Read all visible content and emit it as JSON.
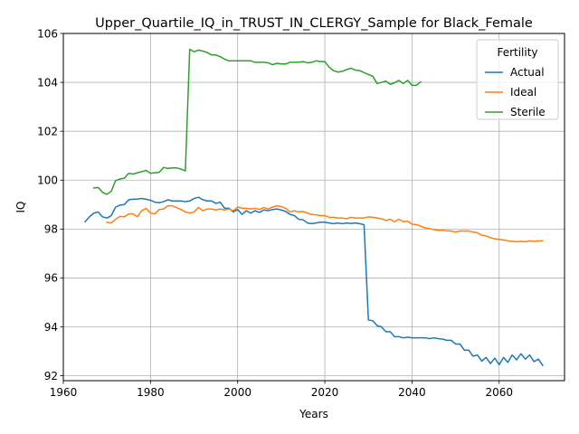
{
  "chart_data": {
    "type": "line",
    "title": "Upper_Quartile_IQ_in_TRUST_IN_CLERGY_Sample for Black_Female",
    "xlabel": "Years",
    "ylabel": "IQ",
    "xlim": [
      1960,
      2075
    ],
    "ylim": [
      91.8,
      106
    ],
    "xticks": [
      1960,
      1980,
      2000,
      2020,
      2040,
      2060
    ],
    "yticks": [
      92,
      94,
      96,
      98,
      100,
      102,
      104,
      106
    ],
    "grid": true,
    "legend": {
      "title": "Fertility",
      "placement": "top-right"
    },
    "series": [
      {
        "name": "Actual",
        "color": "#1f77b4",
        "x": [
          1965,
          1966,
          1967,
          1968,
          1969,
          1970,
          1971,
          1972,
          1973,
          1974,
          1975,
          1976,
          1977,
          1978,
          1979,
          1980,
          1981,
          1982,
          1983,
          1984,
          1985,
          1986,
          1987,
          1988,
          1989,
          1990,
          1991,
          1992,
          1993,
          1994,
          1995,
          1996,
          1997,
          1998,
          1999,
          2000,
          2001,
          2002,
          2003,
          2004,
          2005,
          2006,
          2007,
          2008,
          2009,
          2010,
          2011,
          2012,
          2013,
          2014,
          2015,
          2016,
          2017,
          2018,
          2019,
          2020,
          2021,
          2022,
          2023,
          2024,
          2025,
          2026,
          2027,
          2028,
          2029,
          2030,
          2031,
          2032,
          2033,
          2034,
          2035,
          2036,
          2037,
          2038,
          2039,
          2040,
          2041,
          2042,
          2043,
          2044,
          2045,
          2046,
          2047,
          2048,
          2049,
          2050,
          2051,
          2052,
          2053,
          2054,
          2055,
          2056,
          2057,
          2058,
          2059,
          2060,
          2061,
          2062,
          2063,
          2064,
          2065,
          2066,
          2067,
          2068,
          2069,
          2070
        ],
        "y": [
          98.3,
          98.5,
          98.65,
          98.7,
          98.5,
          98.45,
          98.55,
          98.9,
          98.98,
          99.0,
          99.2,
          99.22,
          99.23,
          99.25,
          99.22,
          99.18,
          99.1,
          99.08,
          99.12,
          99.2,
          99.15,
          99.15,
          99.15,
          99.12,
          99.15,
          99.25,
          99.3,
          99.2,
          99.15,
          99.15,
          99.05,
          99.1,
          98.85,
          98.85,
          98.7,
          98.8,
          98.6,
          98.75,
          98.65,
          98.75,
          98.68,
          98.78,
          98.75,
          98.8,
          98.82,
          98.78,
          98.72,
          98.6,
          98.55,
          98.4,
          98.38,
          98.25,
          98.22,
          98.25,
          98.28,
          98.28,
          98.25,
          98.22,
          98.25,
          98.22,
          98.25,
          98.23,
          98.25,
          98.22,
          98.18,
          94.28,
          94.25,
          94.05,
          94.0,
          93.8,
          93.8,
          93.6,
          93.6,
          93.55,
          93.58,
          93.55,
          93.55,
          93.55,
          93.55,
          93.52,
          93.55,
          93.52,
          93.5,
          93.45,
          93.45,
          93.3,
          93.3,
          93.05,
          93.05,
          92.8,
          92.85,
          92.6,
          92.75,
          92.5,
          92.72,
          92.45,
          92.75,
          92.55,
          92.85,
          92.65,
          92.9,
          92.68,
          92.85,
          92.58,
          92.68,
          92.42
        ]
      },
      {
        "name": "Ideal",
        "color": "#ff7f0e",
        "x": [
          1970,
          1971,
          1972,
          1973,
          1974,
          1975,
          1976,
          1977,
          1978,
          1979,
          1980,
          1981,
          1982,
          1983,
          1984,
          1985,
          1986,
          1987,
          1988,
          1989,
          1990,
          1991,
          1992,
          1993,
          1994,
          1995,
          1996,
          1997,
          1998,
          1999,
          2000,
          2001,
          2002,
          2003,
          2004,
          2005,
          2006,
          2007,
          2008,
          2009,
          2010,
          2011,
          2012,
          2013,
          2014,
          2015,
          2016,
          2017,
          2018,
          2019,
          2020,
          2021,
          2022,
          2023,
          2024,
          2025,
          2026,
          2027,
          2028,
          2029,
          2030,
          2031,
          2032,
          2033,
          2034,
          2035,
          2036,
          2037,
          2038,
          2039,
          2040,
          2041,
          2042,
          2043,
          2044,
          2045,
          2046,
          2047,
          2048,
          2049,
          2050,
          2051,
          2052,
          2053,
          2054,
          2055,
          2056,
          2057,
          2058,
          2059,
          2060,
          2061,
          2062,
          2063,
          2064,
          2065,
          2066,
          2067,
          2068,
          2069,
          2070
        ],
        "y": [
          98.28,
          98.25,
          98.4,
          98.52,
          98.5,
          98.62,
          98.62,
          98.5,
          98.75,
          98.85,
          98.65,
          98.62,
          98.8,
          98.82,
          98.95,
          98.95,
          98.88,
          98.8,
          98.7,
          98.65,
          98.7,
          98.88,
          98.75,
          98.82,
          98.82,
          98.78,
          98.82,
          98.78,
          98.82,
          98.75,
          98.9,
          98.85,
          98.85,
          98.82,
          98.85,
          98.8,
          98.88,
          98.82,
          98.9,
          98.95,
          98.92,
          98.85,
          98.7,
          98.75,
          98.7,
          98.72,
          98.65,
          98.6,
          98.58,
          98.55,
          98.55,
          98.48,
          98.48,
          98.45,
          98.45,
          98.42,
          98.48,
          98.45,
          98.45,
          98.45,
          98.5,
          98.48,
          98.45,
          98.42,
          98.35,
          98.4,
          98.3,
          98.4,
          98.3,
          98.32,
          98.2,
          98.18,
          98.12,
          98.05,
          98.02,
          97.98,
          97.95,
          97.95,
          97.93,
          97.92,
          97.88,
          97.92,
          97.92,
          97.92,
          97.88,
          97.85,
          97.75,
          97.72,
          97.65,
          97.6,
          97.58,
          97.55,
          97.52,
          97.5,
          97.48,
          97.5,
          97.48,
          97.52,
          97.5,
          97.52,
          97.52
        ]
      },
      {
        "name": "Sterile",
        "color": "#2ca02c",
        "x": [
          1967,
          1968,
          1969,
          1970,
          1971,
          1972,
          1973,
          1974,
          1975,
          1976,
          1977,
          1978,
          1979,
          1980,
          1981,
          1982,
          1983,
          1984,
          1985,
          1986,
          1987,
          1988,
          1989,
          1990,
          1991,
          1992,
          1993,
          1994,
          1995,
          1996,
          1997,
          1998,
          1999,
          2000,
          2001,
          2002,
          2003,
          2004,
          2005,
          2006,
          2007,
          2008,
          2009,
          2010,
          2011,
          2012,
          2013,
          2014,
          2015,
          2016,
          2017,
          2018,
          2019,
          2020,
          2021,
          2022,
          2023,
          2024,
          2025,
          2026,
          2027,
          2028,
          2029,
          2030,
          2031,
          2032,
          2033,
          2034,
          2035,
          2036,
          2037,
          2038,
          2039,
          2040,
          2041,
          2042
        ],
        "y": [
          99.68,
          99.7,
          99.5,
          99.42,
          99.55,
          99.98,
          100.05,
          100.08,
          100.28,
          100.25,
          100.3,
          100.35,
          100.4,
          100.28,
          100.3,
          100.32,
          100.52,
          100.48,
          100.5,
          100.5,
          100.45,
          100.38,
          105.35,
          105.25,
          105.32,
          105.28,
          105.22,
          105.12,
          105.12,
          105.05,
          104.95,
          104.88,
          104.88,
          104.88,
          104.88,
          104.88,
          104.88,
          104.82,
          104.82,
          104.82,
          104.8,
          104.72,
          104.78,
          104.75,
          104.75,
          104.82,
          104.82,
          104.82,
          104.85,
          104.8,
          104.82,
          104.88,
          104.85,
          104.85,
          104.62,
          104.48,
          104.42,
          104.45,
          104.52,
          104.58,
          104.5,
          104.48,
          104.4,
          104.32,
          104.25,
          103.95,
          104.0,
          104.05,
          103.92,
          103.98,
          104.08,
          103.95,
          104.08,
          103.88,
          103.88,
          104.02
        ]
      }
    ]
  }
}
